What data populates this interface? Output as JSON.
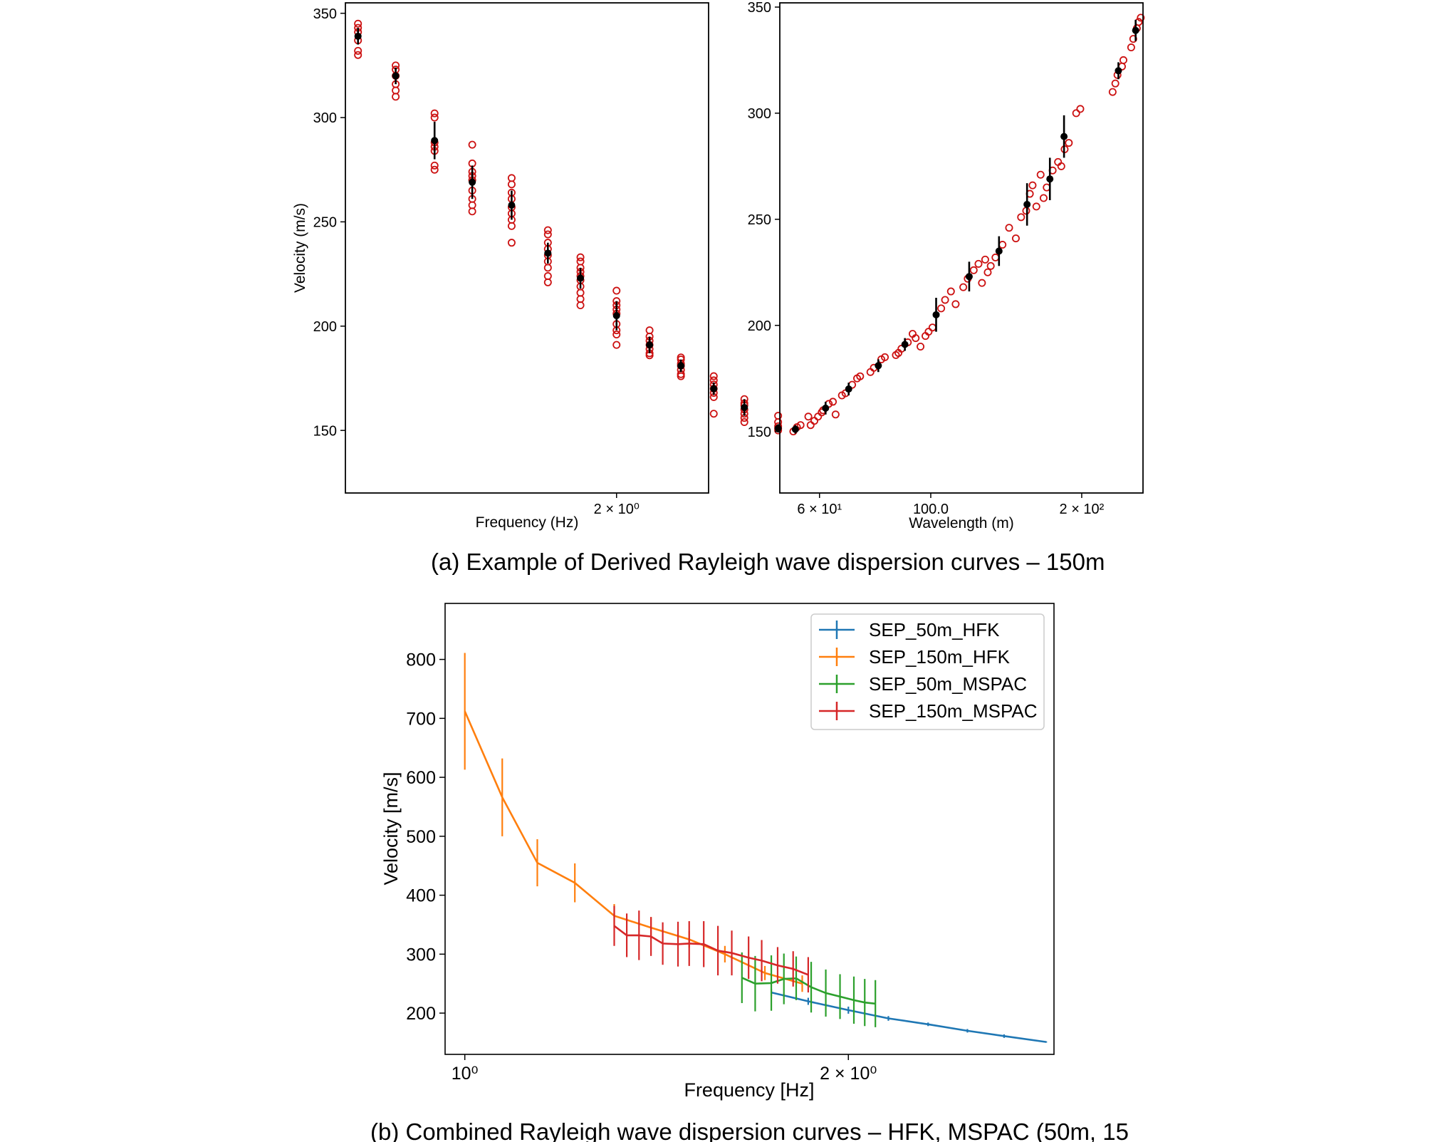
{
  "captions": {
    "a": "(a) Example of Derived Rayleigh wave dispersion curves – 150m",
    "b": "(b) Combined Rayleigh wave dispersion curves – HFK, MSPAC (50m, 15"
  },
  "chart_data": [
    {
      "id": "a-left",
      "type": "scatter",
      "xlabel": "Frequency (Hz)",
      "ylabel": "Velocity (m/s)",
      "xscale": "log",
      "xlim": [
        1.1,
        2.45
      ],
      "ylim": [
        120,
        355
      ],
      "yticks": [
        150,
        200,
        250,
        300,
        350
      ],
      "xtick_labels": [
        {
          "value": 2.0,
          "label": "2 × 10⁰"
        }
      ],
      "grid": false,
      "mean": {
        "color": "#000000",
        "points": [
          {
            "x": 1.131,
            "y": 339,
            "err": 4
          },
          {
            "x": 1.229,
            "y": 320,
            "err": 4
          },
          {
            "x": 1.339,
            "y": 289,
            "err": 9
          },
          {
            "x": 1.455,
            "y": 269,
            "err": 8
          },
          {
            "x": 1.587,
            "y": 258,
            "err": 7
          },
          {
            "x": 1.719,
            "y": 235,
            "err": 5
          },
          {
            "x": 1.847,
            "y": 223,
            "err": 5
          },
          {
            "x": 2.0,
            "y": 205,
            "err": 7
          },
          {
            "x": 2.151,
            "y": 191,
            "err": 4
          },
          {
            "x": 2.305,
            "y": 181,
            "err": 3
          },
          {
            "x": 2.478,
            "y": 170,
            "err": 3
          },
          {
            "x": 2.651,
            "y": 161,
            "err": 4
          },
          {
            "x": 2.856,
            "y": 151,
            "err": 2
          }
        ]
      },
      "samples": {
        "color": "#cc1111",
        "points": [
          {
            "x": 1.131,
            "y": [
              345,
              343,
              341,
              337,
              332,
              330
            ]
          },
          {
            "x": 1.229,
            "y": [
              325,
              323,
              320,
              316,
              313,
              310
            ]
          },
          {
            "x": 1.339,
            "y": [
              302,
              300,
              288,
              286,
              284,
              277,
              275
            ]
          },
          {
            "x": 1.455,
            "y": [
              287,
              278,
              274,
              272,
              270,
              265,
              261,
              258,
              255
            ]
          },
          {
            "x": 1.587,
            "y": [
              271,
              268,
              264,
              261,
              257,
              254,
              251,
              248,
              240
            ]
          },
          {
            "x": 1.719,
            "y": [
              246,
              244,
              240,
              237,
              234,
              231,
              228,
              224,
              221
            ]
          },
          {
            "x": 1.847,
            "y": [
              233,
              231,
              228,
              226,
              224,
              222,
              219,
              216,
              213,
              210
            ]
          },
          {
            "x": 2.0,
            "y": [
              217,
              212,
              210,
              208,
              206,
              201,
              198,
              196,
              191
            ]
          },
          {
            "x": 2.151,
            "y": [
              198,
              195,
              193,
              191,
              189,
              187,
              186
            ]
          },
          {
            "x": 2.305,
            "y": [
              185,
              184,
              182,
              181,
              179,
              177,
              176
            ]
          },
          {
            "x": 2.478,
            "y": [
              176,
              174,
              172,
              170,
              168,
              166,
              158
            ]
          },
          {
            "x": 2.651,
            "y": [
              165,
              163,
              162,
              160,
              158,
              156,
              154
            ]
          },
          {
            "x": 2.856,
            "y": [
              157,
              154,
              152,
              151,
              150
            ]
          }
        ]
      }
    },
    {
      "id": "a-right",
      "type": "scatter",
      "xlabel": "Wavelength (m)",
      "ylabel": "",
      "xscale": "log",
      "xlim": [
        50,
        265
      ],
      "ylim": [
        121,
        352
      ],
      "yticks": [
        150,
        200,
        250,
        300,
        350
      ],
      "xtick_labels": [
        {
          "value": 60,
          "label": "6 × 10¹"
        },
        {
          "value": 100,
          "label": "100.0"
        },
        {
          "value": 200,
          "label": "2 × 10²"
        }
      ],
      "grid": false,
      "mean": {
        "color": "#000000",
        "points": [
          {
            "x": 53.7,
            "y": 151,
            "err": 2
          },
          {
            "x": 61.7,
            "y": 161,
            "err": 3
          },
          {
            "x": 68.6,
            "y": 170,
            "err": 3
          },
          {
            "x": 78.6,
            "y": 181,
            "err": 3
          },
          {
            "x": 88.8,
            "y": 191,
            "err": 3
          },
          {
            "x": 102.5,
            "y": 205,
            "err": 8
          },
          {
            "x": 119.3,
            "y": 223,
            "err": 7
          },
          {
            "x": 136.8,
            "y": 235,
            "err": 7
          },
          {
            "x": 155.6,
            "y": 257,
            "err": 10
          },
          {
            "x": 172.8,
            "y": 269,
            "err": 10
          },
          {
            "x": 184.4,
            "y": 289,
            "err": 10
          },
          {
            "x": 236.7,
            "y": 320,
            "err": 4
          },
          {
            "x": 256.2,
            "y": 339,
            "err": 5
          }
        ]
      },
      "samples": {
        "color": "#cc1111",
        "points": [
          {
            "x": 53.2,
            "y": [
              150
            ]
          },
          {
            "x": 54.1,
            "y": [
              152
            ]
          },
          {
            "x": 55.0,
            "y": [
              153
            ]
          },
          {
            "x": 57.0,
            "y": [
              157
            ]
          },
          {
            "x": 57.6,
            "y": [
              153
            ]
          },
          {
            "x": 58.6,
            "y": [
              155
            ]
          },
          {
            "x": 59.6,
            "y": [
              157
            ]
          },
          {
            "x": 60.6,
            "y": [
              159
            ]
          },
          {
            "x": 61.0,
            "y": [
              160
            ]
          },
          {
            "x": 62.6,
            "y": [
              163
            ]
          },
          {
            "x": 63.8,
            "y": [
              164
            ]
          },
          {
            "x": 64.6,
            "y": [
              158
            ]
          },
          {
            "x": 66.5,
            "y": [
              167
            ]
          },
          {
            "x": 67.6,
            "y": [
              168
            ]
          },
          {
            "x": 69.7,
            "y": [
              172
            ]
          },
          {
            "x": 71.3,
            "y": [
              175
            ]
          },
          {
            "x": 72.3,
            "y": [
              176
            ]
          },
          {
            "x": 75.8,
            "y": [
              178
            ]
          },
          {
            "x": 77.0,
            "y": [
              180
            ]
          },
          {
            "x": 79.7,
            "y": [
              184
            ]
          },
          {
            "x": 81.0,
            "y": [
              185
            ]
          },
          {
            "x": 85.2,
            "y": [
              186
            ]
          },
          {
            "x": 86.2,
            "y": [
              187
            ]
          },
          {
            "x": 87.4,
            "y": [
              189
            ]
          },
          {
            "x": 90.0,
            "y": [
              192
            ]
          },
          {
            "x": 92.0,
            "y": [
              196
            ]
          },
          {
            "x": 93.3,
            "y": [
              194
            ]
          },
          {
            "x": 95.4,
            "y": [
              190
            ]
          },
          {
            "x": 97.6,
            "y": [
              195
            ]
          },
          {
            "x": 99.0,
            "y": [
              197
            ]
          },
          {
            "x": 100.8,
            "y": [
              199
            ]
          },
          {
            "x": 104.9,
            "y": [
              208
            ]
          },
          {
            "x": 106.8,
            "y": [
              212
            ]
          },
          {
            "x": 109.7,
            "y": [
              216
            ]
          },
          {
            "x": 112.1,
            "y": [
              210
            ]
          },
          {
            "x": 116.1,
            "y": [
              218
            ]
          },
          {
            "x": 118.5,
            "y": [
              222
            ]
          },
          {
            "x": 121.8,
            "y": [
              226
            ]
          },
          {
            "x": 124.5,
            "y": [
              229
            ]
          },
          {
            "x": 126.5,
            "y": [
              220
            ]
          },
          {
            "x": 128.4,
            "y": [
              231
            ]
          },
          {
            "x": 129.9,
            "y": [
              225
            ]
          },
          {
            "x": 131.7,
            "y": [
              228
            ]
          },
          {
            "x": 134.6,
            "y": [
              232
            ]
          },
          {
            "x": 139.0,
            "y": [
              238
            ]
          },
          {
            "x": 143.3,
            "y": [
              246
            ]
          },
          {
            "x": 147.8,
            "y": [
              241
            ]
          },
          {
            "x": 151.4,
            "y": [
              251
            ]
          },
          {
            "x": 155.0,
            "y": [
              254
            ]
          },
          {
            "x": 157.6,
            "y": [
              262
            ]
          },
          {
            "x": 159.6,
            "y": [
              266
            ]
          },
          {
            "x": 162.4,
            "y": [
              256
            ]
          },
          {
            "x": 165.6,
            "y": [
              271
            ]
          },
          {
            "x": 167.9,
            "y": [
              260
            ]
          },
          {
            "x": 170.3,
            "y": [
              265
            ]
          },
          {
            "x": 175.0,
            "y": [
              273
            ]
          },
          {
            "x": 179.4,
            "y": [
              277
            ]
          },
          {
            "x": 182.1,
            "y": [
              275
            ]
          },
          {
            "x": 184.9,
            "y": [
              283
            ]
          },
          {
            "x": 188.5,
            "y": [
              286
            ]
          },
          {
            "x": 195.0,
            "y": [
              300
            ]
          },
          {
            "x": 198.7,
            "y": [
              302
            ]
          },
          {
            "x": 230.5,
            "y": [
              310
            ]
          },
          {
            "x": 233.4,
            "y": [
              314
            ]
          },
          {
            "x": 235.7,
            "y": [
              318
            ]
          },
          {
            "x": 240.6,
            "y": [
              322
            ]
          },
          {
            "x": 242.2,
            "y": [
              325
            ]
          },
          {
            "x": 251.0,
            "y": [
              331
            ]
          },
          {
            "x": 253.4,
            "y": [
              335
            ]
          },
          {
            "x": 257.6,
            "y": [
              340
            ]
          },
          {
            "x": 259.8,
            "y": [
              343
            ]
          },
          {
            "x": 262.3,
            "y": [
              345
            ]
          }
        ]
      }
    },
    {
      "id": "b",
      "type": "line",
      "xlabel": "Frequency [Hz]",
      "ylabel": "Velocity [m/s]",
      "xscale": "log",
      "xlim": [
        0.965,
        2.9
      ],
      "ylim": [
        130,
        895
      ],
      "yticks": [
        200,
        300,
        400,
        500,
        600,
        700,
        800
      ],
      "xtick_labels": [
        {
          "value": 1.0,
          "label": "10⁰"
        },
        {
          "value": 2.0,
          "label": "2 × 10⁰"
        }
      ],
      "grid": false,
      "legend": {
        "position": "top-right"
      },
      "series": [
        {
          "name": "SEP_50m_HFK",
          "color": "#1f77b4",
          "points": [
            {
              "x": 1.74,
              "y": 235,
              "err": 6
            },
            {
              "x": 1.86,
              "y": 220,
              "err": 6
            },
            {
              "x": 2.0,
              "y": 205,
              "err": 6
            },
            {
              "x": 2.15,
              "y": 191,
              "err": 4
            },
            {
              "x": 2.31,
              "y": 181,
              "err": 3
            },
            {
              "x": 2.48,
              "y": 170,
              "err": 3
            },
            {
              "x": 2.65,
              "y": 161,
              "err": 3
            },
            {
              "x": 2.86,
              "y": 151,
              "err": 1
            }
          ]
        },
        {
          "name": "SEP_150m_HFK",
          "color": "#ff7f0e",
          "points": [
            {
              "x": 1.0,
              "y": 712,
              "err": 99
            },
            {
              "x": 1.07,
              "y": 566,
              "err": 66
            },
            {
              "x": 1.14,
              "y": 455,
              "err": 40
            },
            {
              "x": 1.22,
              "y": 421,
              "err": 33
            },
            {
              "x": 1.31,
              "y": 365,
              "err": 20
            },
            {
              "x": 1.4,
              "y": 345,
              "err": 18
            },
            {
              "x": 1.5,
              "y": 325,
              "err": 14
            },
            {
              "x": 1.6,
              "y": 300,
              "err": 14
            },
            {
              "x": 1.72,
              "y": 268,
              "err": 12
            },
            {
              "x": 1.84,
              "y": 250,
              "err": 14
            }
          ]
        },
        {
          "name": "SEP_50m_MSPAC",
          "color": "#2ca02c",
          "points": [
            {
              "x": 1.65,
              "y": 260,
              "err": 43
            },
            {
              "x": 1.69,
              "y": 250,
              "err": 47
            },
            {
              "x": 1.74,
              "y": 251,
              "err": 47
            },
            {
              "x": 1.78,
              "y": 258,
              "err": 43
            },
            {
              "x": 1.82,
              "y": 259,
              "err": 37
            },
            {
              "x": 1.87,
              "y": 244,
              "err": 43
            },
            {
              "x": 1.92,
              "y": 234,
              "err": 40
            },
            {
              "x": 1.97,
              "y": 228,
              "err": 38
            },
            {
              "x": 2.02,
              "y": 222,
              "err": 40
            },
            {
              "x": 2.06,
              "y": 218,
              "err": 40
            },
            {
              "x": 2.1,
              "y": 216,
              "err": 40
            }
          ]
        },
        {
          "name": "SEP_150m_MSPAC",
          "color": "#d62728",
          "points": [
            {
              "x": 1.31,
              "y": 348,
              "err": 34
            },
            {
              "x": 1.34,
              "y": 332,
              "err": 37
            },
            {
              "x": 1.37,
              "y": 332,
              "err": 42
            },
            {
              "x": 1.4,
              "y": 330,
              "err": 33
            },
            {
              "x": 1.43,
              "y": 318,
              "err": 36
            },
            {
              "x": 1.47,
              "y": 317,
              "err": 38
            },
            {
              "x": 1.5,
              "y": 318,
              "err": 38
            },
            {
              "x": 1.54,
              "y": 317,
              "err": 39
            },
            {
              "x": 1.58,
              "y": 306,
              "err": 42
            },
            {
              "x": 1.62,
              "y": 302,
              "err": 38
            },
            {
              "x": 1.67,
              "y": 294,
              "err": 36
            },
            {
              "x": 1.71,
              "y": 289,
              "err": 35
            },
            {
              "x": 1.76,
              "y": 281,
              "err": 31
            },
            {
              "x": 1.81,
              "y": 275,
              "err": 30
            },
            {
              "x": 1.86,
              "y": 265,
              "err": 30
            }
          ]
        }
      ]
    }
  ]
}
